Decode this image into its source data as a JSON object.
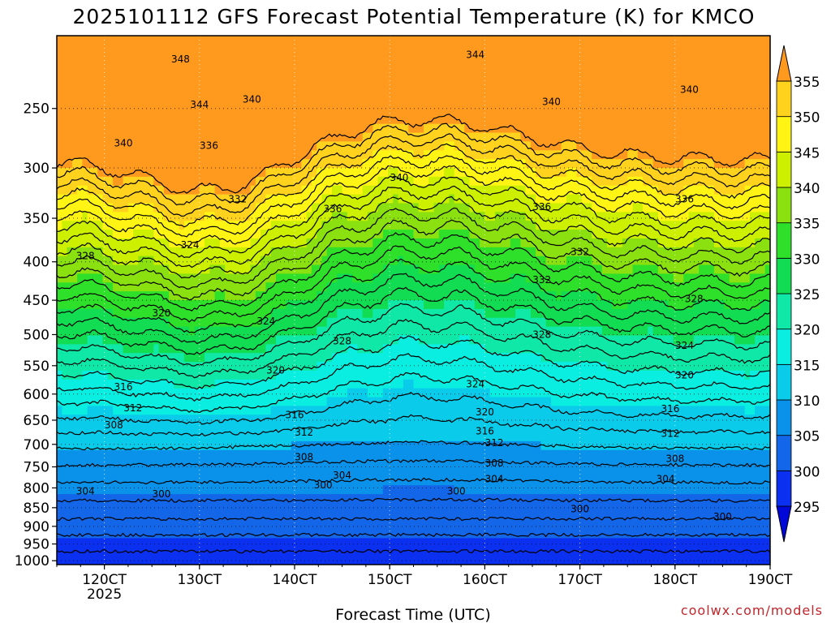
{
  "title": "2025101112 GFS Forecast Potential Temperature (K) for KMCO",
  "credit": "coolwx.com/models",
  "chart_data": {
    "type": "contour-filled time-height cross section",
    "title": "2025101112 GFS Forecast Potential Temperature (K) for KMCO",
    "xlabel": "Forecast Time (UTC)",
    "ylabel": "",
    "x_ticks": [
      {
        "day": 12,
        "label": "120CT",
        "sub": "2025"
      },
      {
        "day": 13,
        "label": "130CT"
      },
      {
        "day": 14,
        "label": "140CT"
      },
      {
        "day": 15,
        "label": "150CT"
      },
      {
        "day": 16,
        "label": "160CT"
      },
      {
        "day": 17,
        "label": "170CT"
      },
      {
        "day": 18,
        "label": "180CT"
      },
      {
        "day": 19,
        "label": "190CT"
      }
    ],
    "xlim": [
      11.5,
      19.0
    ],
    "y_ticks": [
      250,
      300,
      350,
      400,
      450,
      500,
      550,
      600,
      650,
      700,
      750,
      800,
      850,
      900,
      950,
      1000
    ],
    "ylim_hPa": [
      200,
      1000
    ],
    "surface_hPa": 1012,
    "contour_interval_K": 2,
    "contour_labels": [
      {
        "text": "348",
        "t": 12.8,
        "p": 215
      },
      {
        "text": "344",
        "t": 13.0,
        "p": 247
      },
      {
        "text": "340",
        "t": 13.55,
        "p": 243
      },
      {
        "text": "344",
        "t": 15.9,
        "p": 212
      },
      {
        "text": "340",
        "t": 18.15,
        "p": 236
      },
      {
        "text": "340",
        "t": 16.7,
        "p": 245
      },
      {
        "text": "340",
        "t": 12.2,
        "p": 278
      },
      {
        "text": "336",
        "t": 13.1,
        "p": 280
      },
      {
        "text": "340",
        "t": 15.1,
        "p": 309
      },
      {
        "text": "332",
        "t": 13.4,
        "p": 330
      },
      {
        "text": "336",
        "t": 14.4,
        "p": 340
      },
      {
        "text": "336",
        "t": 16.6,
        "p": 338
      },
      {
        "text": "336",
        "t": 18.1,
        "p": 330
      },
      {
        "text": "328",
        "t": 11.8,
        "p": 393
      },
      {
        "text": "324",
        "t": 12.9,
        "p": 380
      },
      {
        "text": "332",
        "t": 17.0,
        "p": 388
      },
      {
        "text": "332",
        "t": 16.6,
        "p": 423
      },
      {
        "text": "320",
        "t": 12.6,
        "p": 468
      },
      {
        "text": "324",
        "t": 13.7,
        "p": 480
      },
      {
        "text": "328",
        "t": 14.5,
        "p": 510
      },
      {
        "text": "328",
        "t": 16.6,
        "p": 500
      },
      {
        "text": "328",
        "t": 18.2,
        "p": 448
      },
      {
        "text": "324",
        "t": 18.1,
        "p": 517
      },
      {
        "text": "320",
        "t": 13.8,
        "p": 558
      },
      {
        "text": "324",
        "t": 15.9,
        "p": 582
      },
      {
        "text": "320",
        "t": 18.1,
        "p": 566
      },
      {
        "text": "316",
        "t": 12.2,
        "p": 587
      },
      {
        "text": "312",
        "t": 12.3,
        "p": 626
      },
      {
        "text": "320",
        "t": 16.0,
        "p": 634
      },
      {
        "text": "316",
        "t": 17.95,
        "p": 628
      },
      {
        "text": "308",
        "t": 12.1,
        "p": 660
      },
      {
        "text": "316",
        "t": 14.0,
        "p": 640
      },
      {
        "text": "316",
        "t": 16.0,
        "p": 672
      },
      {
        "text": "312",
        "t": 14.1,
        "p": 675
      },
      {
        "text": "312",
        "t": 16.1,
        "p": 697
      },
      {
        "text": "312",
        "t": 17.95,
        "p": 677
      },
      {
        "text": "308",
        "t": 14.1,
        "p": 728
      },
      {
        "text": "308",
        "t": 16.1,
        "p": 742
      },
      {
        "text": "308",
        "t": 18.0,
        "p": 732
      },
      {
        "text": "304",
        "t": 14.5,
        "p": 770
      },
      {
        "text": "304",
        "t": 16.1,
        "p": 778
      },
      {
        "text": "304",
        "t": 17.9,
        "p": 778
      },
      {
        "text": "300",
        "t": 14.3,
        "p": 793
      },
      {
        "text": "304",
        "t": 11.8,
        "p": 808
      },
      {
        "text": "300",
        "t": 12.6,
        "p": 815
      },
      {
        "text": "300",
        "t": 15.7,
        "p": 808
      },
      {
        "text": "300",
        "t": 17.0,
        "p": 853
      },
      {
        "text": "300",
        "t": 18.5,
        "p": 874
      }
    ],
    "colorbar": {
      "levels": [
        295,
        300,
        305,
        310,
        315,
        320,
        325,
        330,
        335,
        340,
        345,
        350,
        355
      ],
      "colors": [
        "#0008d8",
        "#0b30f0",
        "#1466e8",
        "#0a92ea",
        "#0acbea",
        "#09eee0",
        "#0fe8a6",
        "#12dc52",
        "#2fe02a",
        "#8be010",
        "#cdf000",
        "#fff414",
        "#ffd21e",
        "#ff9a1e"
      ]
    },
    "ground_color": "#a0522d"
  }
}
